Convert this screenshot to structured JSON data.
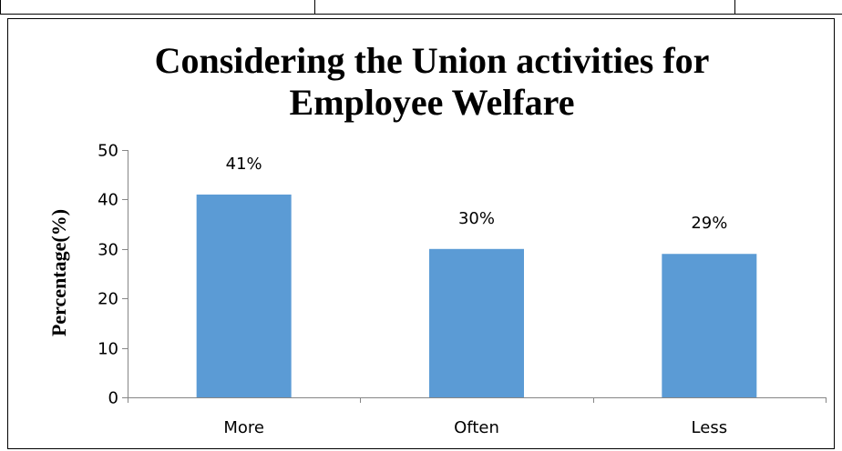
{
  "chart_data": {
    "type": "bar",
    "title_lines": [
      "Considering the Union activities for",
      "Employee Welfare"
    ],
    "xlabel": "",
    "ylabel": "Percentage(%)",
    "categories": [
      "More",
      "Often",
      "Less"
    ],
    "values": [
      41,
      30,
      29
    ],
    "data_labels": [
      "41%",
      "30%",
      "29%"
    ],
    "ylim": [
      0,
      50
    ],
    "yticks": [
      0,
      10,
      20,
      30,
      40,
      50
    ],
    "grid": false,
    "legend": "none",
    "bar_color": "#5B9BD5"
  }
}
